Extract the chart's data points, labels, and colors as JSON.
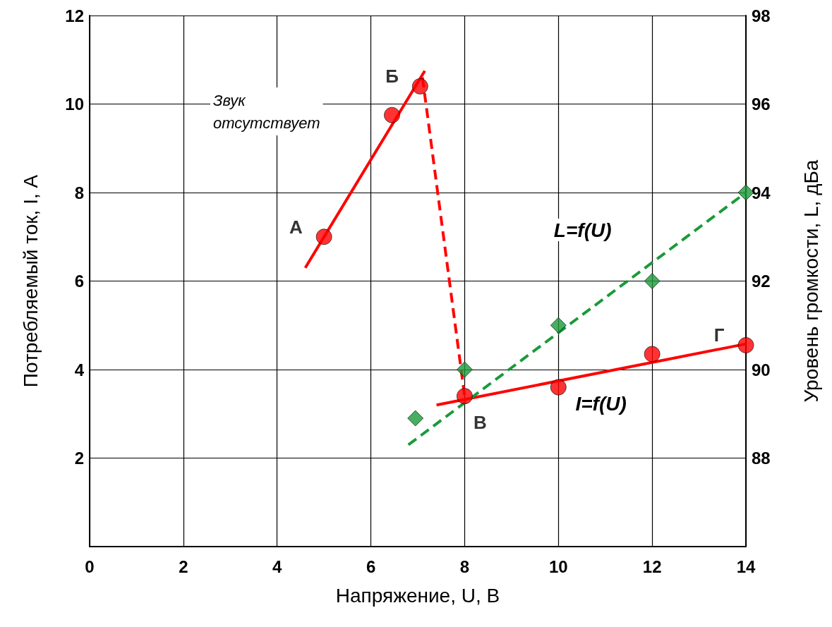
{
  "chart_data": {
    "type": "scatter",
    "xlabel": "Напряжение, U, В",
    "ylabel": "Потребляемый ток, I, А",
    "y2label": "Уровень громкости, L, дБа",
    "xlim": [
      0,
      14
    ],
    "xticks": [
      0,
      2,
      4,
      6,
      8,
      10,
      12,
      14
    ],
    "ylim": [
      0,
      12
    ],
    "yticks": [
      2,
      4,
      6,
      8,
      10,
      12
    ],
    "y2lim": [
      86,
      98
    ],
    "y2ticks": [
      88,
      90,
      92,
      94,
      96,
      98
    ],
    "grid": true,
    "legend": false,
    "series": [
      {
        "color": "#ff0000",
        "marker": "circle",
        "x": [
          5,
          6.45,
          7.05,
          8,
          10,
          12,
          14
        ],
        "values": [
          7.0,
          9.75,
          10.4,
          3.4,
          3.6,
          4.35,
          4.55
        ],
        "value_labels": [
          "А",
          null,
          "Б",
          "В",
          null,
          null,
          "Г"
        ]
      },
      {
        "type": "line",
        "color": "#ff0000",
        "marker": "none",
        "line_style": "solid",
        "x": [
          4.6,
          7.15
        ],
        "values": [
          6.3,
          10.75
        ]
      },
      {
        "type": "line",
        "color": "#ff0000",
        "marker": "none",
        "line_style": "dashed",
        "x": [
          7.1,
          8.0
        ],
        "values": [
          10.6,
          3.4
        ]
      },
      {
        "type": "line",
        "name": "I=f(U)",
        "color": "#ff0000",
        "marker": "none",
        "line_style": "solid",
        "x": [
          7.4,
          14
        ],
        "values": [
          3.2,
          4.58
        ]
      },
      {
        "axis": "y2",
        "color": "#1a9a3a",
        "marker": "diamond",
        "x": [
          6.95,
          8,
          10,
          12,
          14
        ],
        "values": [
          88.9,
          90.0,
          91.0,
          92.0,
          94.0
        ]
      },
      {
        "type": "line",
        "name": "L=f(U)",
        "axis": "y2",
        "color": "#1a9a3a",
        "marker": "none",
        "line_style": "dashed",
        "x": [
          6.8,
          14
        ],
        "values": [
          88.3,
          94.0
        ]
      }
    ],
    "annotations": [
      "Звук\nотсутствует"
    ]
  }
}
